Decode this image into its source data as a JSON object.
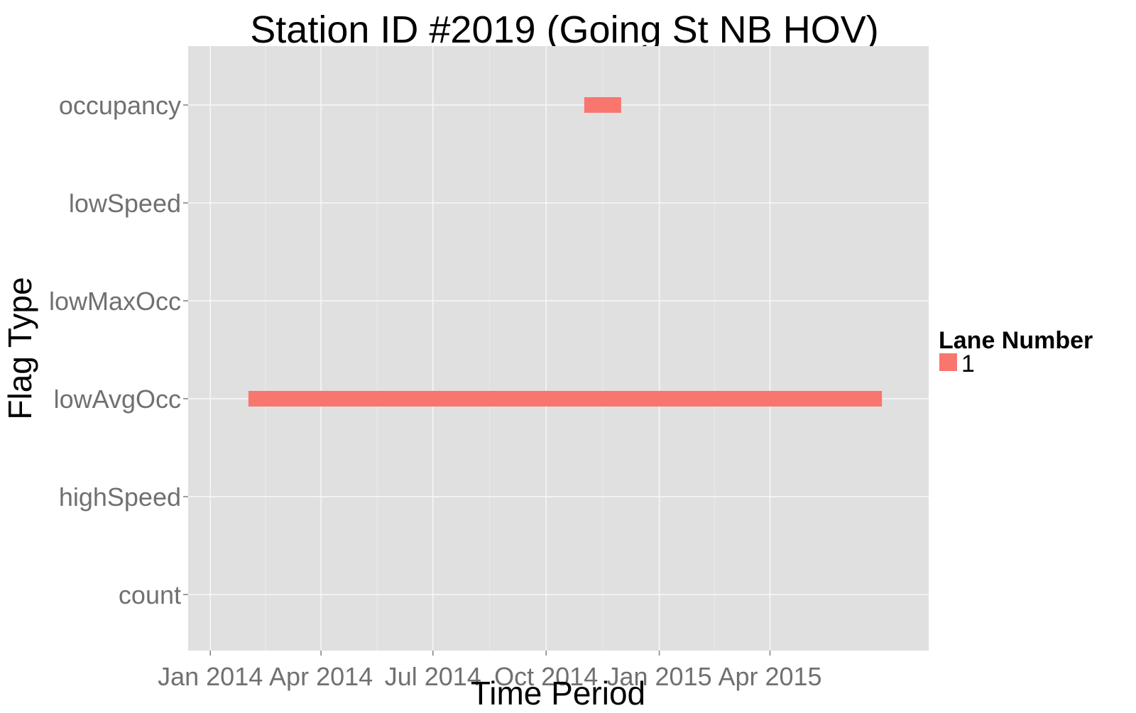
{
  "chart_data": {
    "type": "gantt",
    "title": "Station ID #2019 (Going St NB HOV)",
    "xlabel": "Time Period",
    "ylabel": "Flag Type",
    "x_range": [
      "2013-12-14",
      "2015-08-08"
    ],
    "x_ticks": [
      {
        "date": "2014-01-01",
        "label": "Jan 2014"
      },
      {
        "date": "2014-04-01",
        "label": "Apr 2014"
      },
      {
        "date": "2014-07-01",
        "label": "Jul 2014"
      },
      {
        "date": "2014-10-01",
        "label": "Oct 2014"
      },
      {
        "date": "2015-01-01",
        "label": "Jan 2015"
      },
      {
        "date": "2015-04-01",
        "label": "Apr 2015"
      }
    ],
    "categories": [
      "count",
      "highSpeed",
      "lowAvgOcc",
      "lowMaxOcc",
      "lowSpeed",
      "occupancy"
    ],
    "legend": {
      "title": "Lane Number",
      "items": [
        {
          "label": "1",
          "color": "#f8766d"
        }
      ],
      "position": "right"
    },
    "grid": true,
    "panel_color": "#e0e0e0",
    "series": [
      {
        "name": "1",
        "color": "#f8766d",
        "segments": [
          {
            "category": "lowAvgOcc",
            "start": "2014-02-01",
            "end": "2015-07-01"
          },
          {
            "category": "occupancy",
            "start": "2014-11-01",
            "end": "2014-12-01"
          }
        ]
      }
    ]
  }
}
